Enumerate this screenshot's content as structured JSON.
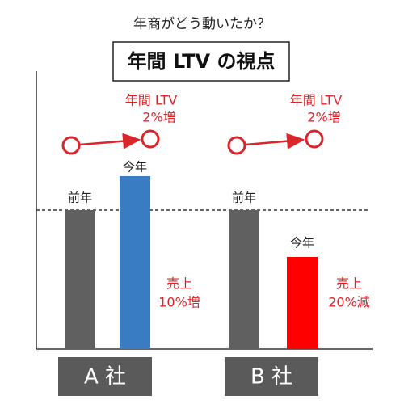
{
  "subtitle": "年商がどう動いたか？",
  "title": "年間 LTV の視点",
  "companies": [
    {
      "name": "A 社",
      "last_year": "前年",
      "this_year": "今年",
      "ltv": {
        "label": "年間 LTV",
        "change": "2%増"
      },
      "sales": {
        "label": "売上",
        "change": "10%増"
      }
    },
    {
      "name": "B 社",
      "last_year": "前年",
      "this_year": "今年",
      "ltv": {
        "label": "年間 LTV",
        "change": "2%増"
      },
      "sales": {
        "label": "売上",
        "change": "20%減"
      }
    }
  ]
}
